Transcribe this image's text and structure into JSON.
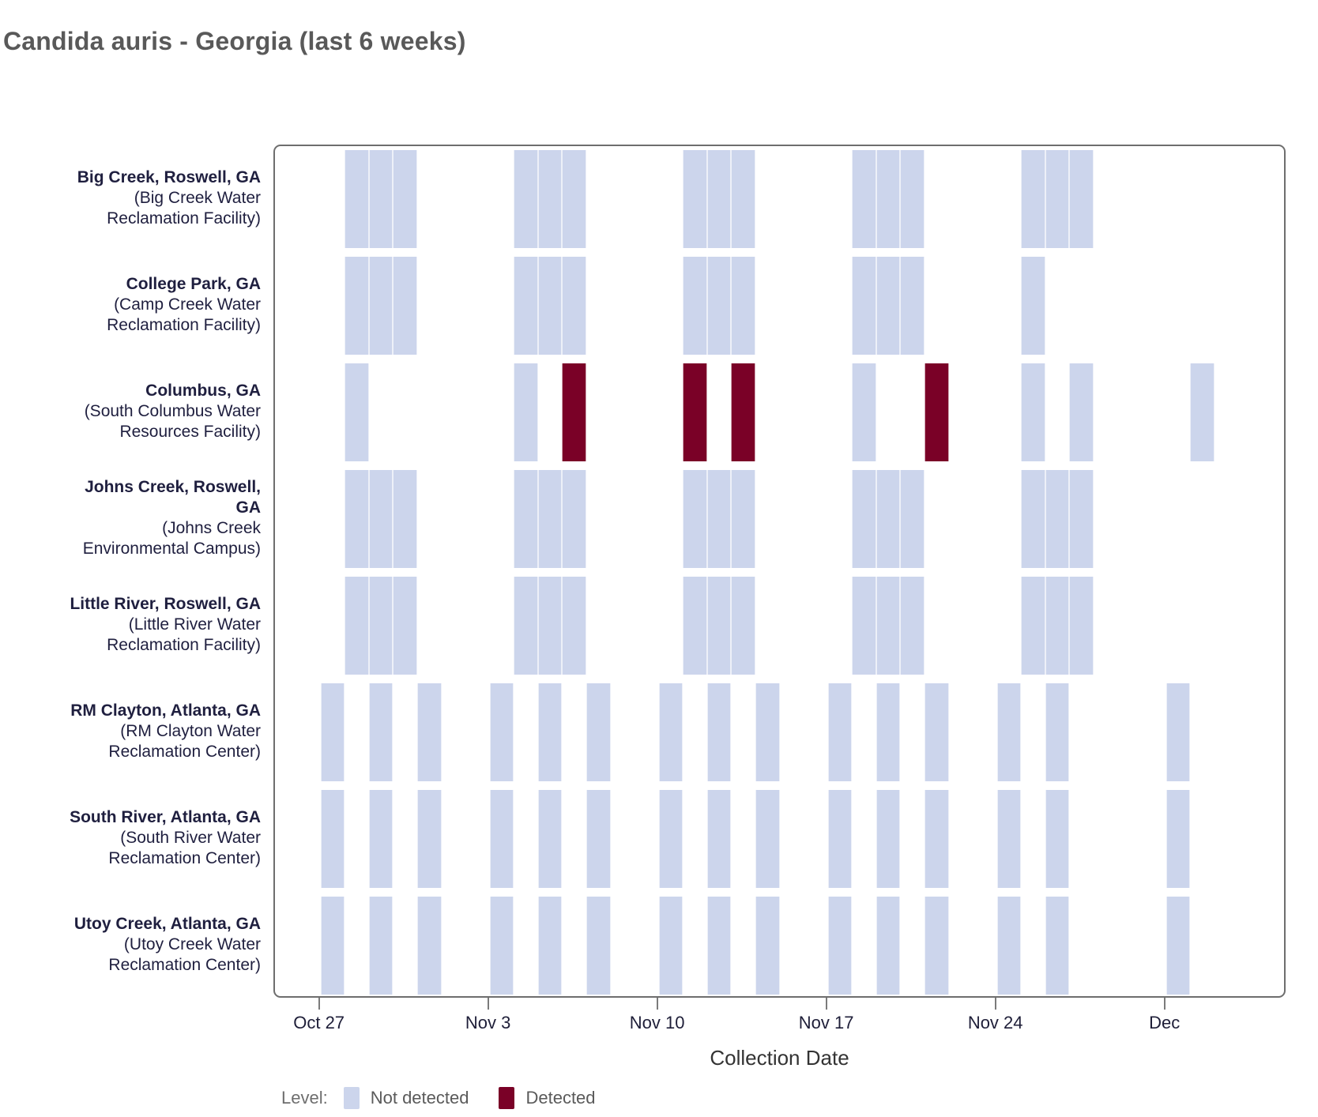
{
  "title": "Candida auris - Georgia (last 6 weeks)",
  "colors": {
    "not_detected": "#CCD5EC",
    "detected": "#7A0127",
    "row_label_navy": "#1F1F3F",
    "tick_label_navy": "#1E1E38",
    "title_gray": "#595959",
    "panel_border_gray": "#6E6E6E"
  },
  "chart_data": {
    "type": "heatmap",
    "title": "Candida auris - Georgia (last 6 weeks)",
    "day_index_origin": "Oct 25",
    "x_axis": {
      "label": "Collection Date",
      "start": "Oct 25",
      "end": "Dec 6",
      "grid": false,
      "ticks": [
        {
          "label": "Oct 27",
          "day": 2
        },
        {
          "label": "Nov 3",
          "day": 9
        },
        {
          "label": "Nov 10",
          "day": 16
        },
        {
          "label": "Nov 17",
          "day": 23
        },
        {
          "label": "Nov 24",
          "day": 30
        },
        {
          "label": "Dec",
          "day": 37
        }
      ]
    },
    "legend": {
      "title": "Level:",
      "position": "bottom-left",
      "items": [
        {
          "label": "Not detected",
          "value": "not_detected",
          "color": "#CCD5EC"
        },
        {
          "label": "Detected",
          "value": "detected",
          "color": "#7A0127"
        }
      ]
    },
    "rows": [
      {
        "name": "Big Creek, Roswell, GA",
        "name_lines": [
          "Big Creek, Roswell, GA"
        ],
        "facility_lines": [
          "(Big Creek Water",
          "Reclamation Facility)"
        ],
        "samples": [
          {
            "date": "Oct 28",
            "day": 3,
            "status": "not_detected"
          },
          {
            "date": "Oct 29",
            "day": 4,
            "status": "not_detected"
          },
          {
            "date": "Oct 30",
            "day": 5,
            "status": "not_detected"
          },
          {
            "date": "Nov 4",
            "day": 10,
            "status": "not_detected"
          },
          {
            "date": "Nov 5",
            "day": 11,
            "status": "not_detected"
          },
          {
            "date": "Nov 6",
            "day": 12,
            "status": "not_detected"
          },
          {
            "date": "Nov 11",
            "day": 17,
            "status": "not_detected"
          },
          {
            "date": "Nov 12",
            "day": 18,
            "status": "not_detected"
          },
          {
            "date": "Nov 13",
            "day": 19,
            "status": "not_detected"
          },
          {
            "date": "Nov 18",
            "day": 24,
            "status": "not_detected"
          },
          {
            "date": "Nov 19",
            "day": 25,
            "status": "not_detected"
          },
          {
            "date": "Nov 20",
            "day": 26,
            "status": "not_detected"
          },
          {
            "date": "Nov 25",
            "day": 31,
            "status": "not_detected"
          },
          {
            "date": "Nov 26",
            "day": 32,
            "status": "not_detected"
          },
          {
            "date": "Nov 27",
            "day": 33,
            "status": "not_detected"
          }
        ]
      },
      {
        "name": "College Park, GA",
        "name_lines": [
          "College Park, GA"
        ],
        "facility_lines": [
          "(Camp Creek Water",
          "Reclamation Facility)"
        ],
        "samples": [
          {
            "date": "Oct 28",
            "day": 3,
            "status": "not_detected"
          },
          {
            "date": "Oct 29",
            "day": 4,
            "status": "not_detected"
          },
          {
            "date": "Oct 30",
            "day": 5,
            "status": "not_detected"
          },
          {
            "date": "Nov 4",
            "day": 10,
            "status": "not_detected"
          },
          {
            "date": "Nov 5",
            "day": 11,
            "status": "not_detected"
          },
          {
            "date": "Nov 6",
            "day": 12,
            "status": "not_detected"
          },
          {
            "date": "Nov 11",
            "day": 17,
            "status": "not_detected"
          },
          {
            "date": "Nov 12",
            "day": 18,
            "status": "not_detected"
          },
          {
            "date": "Nov 13",
            "day": 19,
            "status": "not_detected"
          },
          {
            "date": "Nov 18",
            "day": 24,
            "status": "not_detected"
          },
          {
            "date": "Nov 19",
            "day": 25,
            "status": "not_detected"
          },
          {
            "date": "Nov 20",
            "day": 26,
            "status": "not_detected"
          },
          {
            "date": "Nov 25",
            "day": 31,
            "status": "not_detected"
          }
        ]
      },
      {
        "name": "Columbus, GA",
        "name_lines": [
          "Columbus, GA"
        ],
        "facility_lines": [
          "(South Columbus Water",
          "Resources Facility)"
        ],
        "samples": [
          {
            "date": "Oct 28",
            "day": 3,
            "status": "not_detected"
          },
          {
            "date": "Nov 4",
            "day": 10,
            "status": "not_detected"
          },
          {
            "date": "Nov 6",
            "day": 12,
            "status": "detected"
          },
          {
            "date": "Nov 11",
            "day": 17,
            "status": "detected"
          },
          {
            "date": "Nov 13",
            "day": 19,
            "status": "detected"
          },
          {
            "date": "Nov 18",
            "day": 24,
            "status": "not_detected"
          },
          {
            "date": "Nov 21",
            "day": 27,
            "status": "detected"
          },
          {
            "date": "Nov 25",
            "day": 31,
            "status": "not_detected"
          },
          {
            "date": "Nov 27",
            "day": 33,
            "status": "not_detected"
          },
          {
            "date": "Dec 2",
            "day": 38,
            "status": "not_detected"
          }
        ]
      },
      {
        "name": "Johns Creek, Roswell, GA",
        "name_lines": [
          "Johns Creek, Roswell,",
          "GA"
        ],
        "facility_lines": [
          "(Johns Creek",
          "Environmental Campus)"
        ],
        "samples": [
          {
            "date": "Oct 28",
            "day": 3,
            "status": "not_detected"
          },
          {
            "date": "Oct 29",
            "day": 4,
            "status": "not_detected"
          },
          {
            "date": "Oct 30",
            "day": 5,
            "status": "not_detected"
          },
          {
            "date": "Nov 4",
            "day": 10,
            "status": "not_detected"
          },
          {
            "date": "Nov 5",
            "day": 11,
            "status": "not_detected"
          },
          {
            "date": "Nov 6",
            "day": 12,
            "status": "not_detected"
          },
          {
            "date": "Nov 11",
            "day": 17,
            "status": "not_detected"
          },
          {
            "date": "Nov 12",
            "day": 18,
            "status": "not_detected"
          },
          {
            "date": "Nov 13",
            "day": 19,
            "status": "not_detected"
          },
          {
            "date": "Nov 18",
            "day": 24,
            "status": "not_detected"
          },
          {
            "date": "Nov 19",
            "day": 25,
            "status": "not_detected"
          },
          {
            "date": "Nov 20",
            "day": 26,
            "status": "not_detected"
          },
          {
            "date": "Nov 25",
            "day": 31,
            "status": "not_detected"
          },
          {
            "date": "Nov 26",
            "day": 32,
            "status": "not_detected"
          },
          {
            "date": "Nov 27",
            "day": 33,
            "status": "not_detected"
          }
        ]
      },
      {
        "name": "Little River, Roswell, GA",
        "name_lines": [
          "Little River, Roswell, GA"
        ],
        "facility_lines": [
          "(Little River Water",
          "Reclamation Facility)"
        ],
        "samples": [
          {
            "date": "Oct 28",
            "day": 3,
            "status": "not_detected"
          },
          {
            "date": "Oct 29",
            "day": 4,
            "status": "not_detected"
          },
          {
            "date": "Oct 30",
            "day": 5,
            "status": "not_detected"
          },
          {
            "date": "Nov 4",
            "day": 10,
            "status": "not_detected"
          },
          {
            "date": "Nov 5",
            "day": 11,
            "status": "not_detected"
          },
          {
            "date": "Nov 6",
            "day": 12,
            "status": "not_detected"
          },
          {
            "date": "Nov 11",
            "day": 17,
            "status": "not_detected"
          },
          {
            "date": "Nov 12",
            "day": 18,
            "status": "not_detected"
          },
          {
            "date": "Nov 13",
            "day": 19,
            "status": "not_detected"
          },
          {
            "date": "Nov 18",
            "day": 24,
            "status": "not_detected"
          },
          {
            "date": "Nov 19",
            "day": 25,
            "status": "not_detected"
          },
          {
            "date": "Nov 20",
            "day": 26,
            "status": "not_detected"
          },
          {
            "date": "Nov 25",
            "day": 31,
            "status": "not_detected"
          },
          {
            "date": "Nov 26",
            "day": 32,
            "status": "not_detected"
          },
          {
            "date": "Nov 27",
            "day": 33,
            "status": "not_detected"
          }
        ]
      },
      {
        "name": "RM Clayton, Atlanta, GA",
        "name_lines": [
          "RM Clayton, Atlanta, GA"
        ],
        "facility_lines": [
          "(RM Clayton Water",
          "Reclamation Center)"
        ],
        "samples": [
          {
            "date": "Oct 27",
            "day": 2,
            "status": "not_detected"
          },
          {
            "date": "Oct 29",
            "day": 4,
            "status": "not_detected"
          },
          {
            "date": "Oct 31",
            "day": 6,
            "status": "not_detected"
          },
          {
            "date": "Nov 3",
            "day": 9,
            "status": "not_detected"
          },
          {
            "date": "Nov 5",
            "day": 11,
            "status": "not_detected"
          },
          {
            "date": "Nov 7",
            "day": 13,
            "status": "not_detected"
          },
          {
            "date": "Nov 10",
            "day": 16,
            "status": "not_detected"
          },
          {
            "date": "Nov 12",
            "day": 18,
            "status": "not_detected"
          },
          {
            "date": "Nov 14",
            "day": 20,
            "status": "not_detected"
          },
          {
            "date": "Nov 17",
            "day": 23,
            "status": "not_detected"
          },
          {
            "date": "Nov 19",
            "day": 25,
            "status": "not_detected"
          },
          {
            "date": "Nov 21",
            "day": 27,
            "status": "not_detected"
          },
          {
            "date": "Nov 24",
            "day": 30,
            "status": "not_detected"
          },
          {
            "date": "Nov 26",
            "day": 32,
            "status": "not_detected"
          },
          {
            "date": "Dec 1",
            "day": 37,
            "status": "not_detected"
          }
        ]
      },
      {
        "name": "South River, Atlanta, GA",
        "name_lines": [
          "South River, Atlanta, GA"
        ],
        "facility_lines": [
          "(South River Water",
          "Reclamation Center)"
        ],
        "samples": [
          {
            "date": "Oct 27",
            "day": 2,
            "status": "not_detected"
          },
          {
            "date": "Oct 29",
            "day": 4,
            "status": "not_detected"
          },
          {
            "date": "Oct 31",
            "day": 6,
            "status": "not_detected"
          },
          {
            "date": "Nov 3",
            "day": 9,
            "status": "not_detected"
          },
          {
            "date": "Nov 5",
            "day": 11,
            "status": "not_detected"
          },
          {
            "date": "Nov 7",
            "day": 13,
            "status": "not_detected"
          },
          {
            "date": "Nov 10",
            "day": 16,
            "status": "not_detected"
          },
          {
            "date": "Nov 12",
            "day": 18,
            "status": "not_detected"
          },
          {
            "date": "Nov 14",
            "day": 20,
            "status": "not_detected"
          },
          {
            "date": "Nov 17",
            "day": 23,
            "status": "not_detected"
          },
          {
            "date": "Nov 19",
            "day": 25,
            "status": "not_detected"
          },
          {
            "date": "Nov 21",
            "day": 27,
            "status": "not_detected"
          },
          {
            "date": "Nov 24",
            "day": 30,
            "status": "not_detected"
          },
          {
            "date": "Nov 26",
            "day": 32,
            "status": "not_detected"
          },
          {
            "date": "Dec 1",
            "day": 37,
            "status": "not_detected"
          }
        ]
      },
      {
        "name": "Utoy Creek, Atlanta, GA",
        "name_lines": [
          "Utoy Creek, Atlanta, GA"
        ],
        "facility_lines": [
          "(Utoy Creek Water",
          "Reclamation Center)"
        ],
        "samples": [
          {
            "date": "Oct 27",
            "day": 2,
            "status": "not_detected"
          },
          {
            "date": "Oct 29",
            "day": 4,
            "status": "not_detected"
          },
          {
            "date": "Oct 31",
            "day": 6,
            "status": "not_detected"
          },
          {
            "date": "Nov 3",
            "day": 9,
            "status": "not_detected"
          },
          {
            "date": "Nov 5",
            "day": 11,
            "status": "not_detected"
          },
          {
            "date": "Nov 7",
            "day": 13,
            "status": "not_detected"
          },
          {
            "date": "Nov 10",
            "day": 16,
            "status": "not_detected"
          },
          {
            "date": "Nov 12",
            "day": 18,
            "status": "not_detected"
          },
          {
            "date": "Nov 14",
            "day": 20,
            "status": "not_detected"
          },
          {
            "date": "Nov 17",
            "day": 23,
            "status": "not_detected"
          },
          {
            "date": "Nov 19",
            "day": 25,
            "status": "not_detected"
          },
          {
            "date": "Nov 21",
            "day": 27,
            "status": "not_detected"
          },
          {
            "date": "Nov 24",
            "day": 30,
            "status": "not_detected"
          },
          {
            "date": "Nov 26",
            "day": 32,
            "status": "not_detected"
          },
          {
            "date": "Dec 1",
            "day": 37,
            "status": "not_detected"
          }
        ]
      }
    ]
  }
}
